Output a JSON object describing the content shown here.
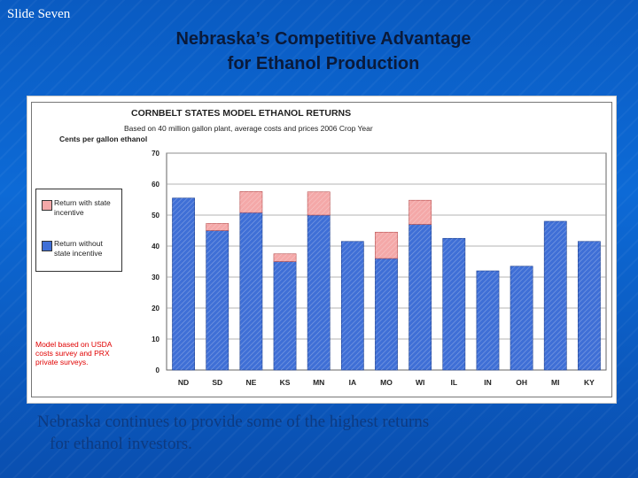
{
  "slide": {
    "label": "Slide Seven",
    "title_line1": "Nebraska’s Competitive Advantage",
    "title_line2": "for Ethanol Production",
    "body_line1": "Nebraska continues to provide some of the highest returns",
    "body_line2": "for ethanol investors."
  },
  "chart_data": {
    "type": "bar",
    "stacked": true,
    "title": "CORNBELT STATES MODEL ETHANOL RETURNS",
    "subtitle": "Based on 40 million gallon plant, average costs and prices 2006 Crop Year",
    "ylabel": "Cents per gallon ethanol",
    "xlabel": "",
    "ylim": [
      0,
      70
    ],
    "yticks": [
      0,
      10,
      20,
      30,
      40,
      50,
      60,
      70
    ],
    "grid": true,
    "legend_position": "left",
    "categories": [
      "ND",
      "SD",
      "NE",
      "KS",
      "MN",
      "IA",
      "MO",
      "WI",
      "IL",
      "IN",
      "OH",
      "MI",
      "KY"
    ],
    "series": [
      {
        "name": "Return without state incentive",
        "color": "#3f6fd6",
        "values": [
          55.5,
          45,
          50.8,
          35,
          50,
          41.5,
          36,
          47,
          42.5,
          32,
          33.5,
          48,
          41.5
        ]
      },
      {
        "name": "Return with state incentive",
        "color": "#f4a8a8",
        "values": [
          0,
          2.3,
          6.8,
          2.5,
          7.5,
          0,
          8.5,
          7.8,
          0,
          0,
          0,
          0,
          0
        ]
      }
    ],
    "note": "Model based on USDA costs survey and PRX private surveys."
  }
}
